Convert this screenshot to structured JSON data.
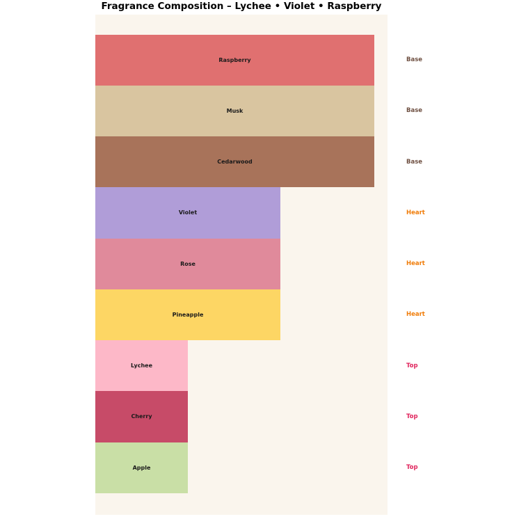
{
  "title": "Fragrance Composition – Lychee • Violet • Raspberry",
  "colors": {
    "page_background": "#FFFFFF",
    "plot_background": "#FAF5ED",
    "bar_text": "#1A1A1A",
    "title_text": "#000000"
  },
  "chart_data": {
    "type": "bar",
    "orientation": "horizontal",
    "title": "Fragrance Composition – Lychee • Violet • Raspberry",
    "xlabel": "",
    "ylabel": "",
    "grid": false,
    "legend": "none",
    "axes_visible": false,
    "value_scale_note": "bar length proportional to note tier strength; Base:Heart:Top = 3:2:1",
    "xlim": [
      0,
      3.15
    ],
    "bars": [
      {
        "note": "Raspberry",
        "tier": "Base",
        "value": 3,
        "width_fraction": 0.955,
        "color": "#E07070"
      },
      {
        "note": "Musk",
        "tier": "Base",
        "value": 3,
        "width_fraction": 0.955,
        "color": "#D9C5A0"
      },
      {
        "note": "Cedarwood",
        "tier": "Base",
        "value": 3,
        "width_fraction": 0.955,
        "color": "#A8735A"
      },
      {
        "note": "Violet",
        "tier": "Heart",
        "value": 2,
        "width_fraction": 0.633,
        "color": "#B09DD8"
      },
      {
        "note": "Rose",
        "tier": "Heart",
        "value": 2,
        "width_fraction": 0.633,
        "color": "#E08A9B"
      },
      {
        "note": "Pineapple",
        "tier": "Heart",
        "value": 2,
        "width_fraction": 0.633,
        "color": "#FDD664"
      },
      {
        "note": "Lychee",
        "tier": "Top",
        "value": 1,
        "width_fraction": 0.317,
        "color": "#FDB8C8"
      },
      {
        "note": "Cherry",
        "tier": "Top",
        "value": 1,
        "width_fraction": 0.317,
        "color": "#C74B68"
      },
      {
        "note": "Apple",
        "tier": "Top",
        "value": 1,
        "width_fraction": 0.317,
        "color": "#C9DFA6"
      }
    ],
    "tier_colors": {
      "Base": "#6F5042",
      "Heart": "#F07D0A",
      "Top": "#E0265E"
    }
  }
}
